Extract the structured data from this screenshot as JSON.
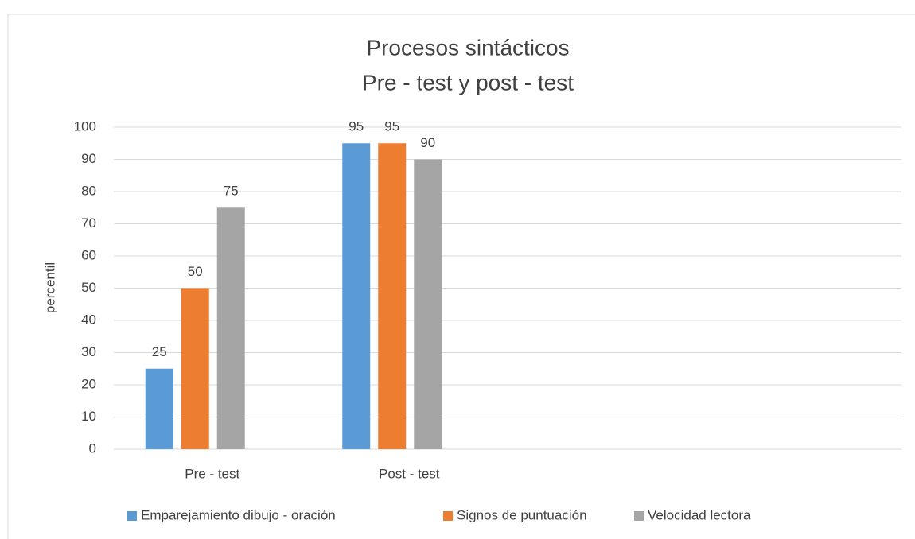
{
  "chart_data": {
    "type": "bar",
    "title": "Procesos sintácticos",
    "subtitle": "Pre - test y post - test",
    "y_label": "percentil",
    "categories": [
      "Pre - test",
      "Post - test",
      null,
      null
    ],
    "series": [
      {
        "name": "Emparejamiento dibujo - oración",
        "color": "#5b9bd5",
        "values": [
          25,
          95,
          null,
          null
        ]
      },
      {
        "name": "Signos de puntuación",
        "color": "#ed7d31",
        "values": [
          50,
          95,
          null,
          null
        ]
      },
      {
        "name": "Velocidad lectora",
        "color": "#a5a5a5",
        "values": [
          75,
          90,
          null,
          null
        ]
      }
    ],
    "ylim": [
      0,
      100
    ],
    "yticks": [
      0,
      10,
      20,
      30,
      40,
      50,
      60,
      70,
      80,
      90,
      100
    ],
    "grid": true,
    "legend": "bottom"
  }
}
